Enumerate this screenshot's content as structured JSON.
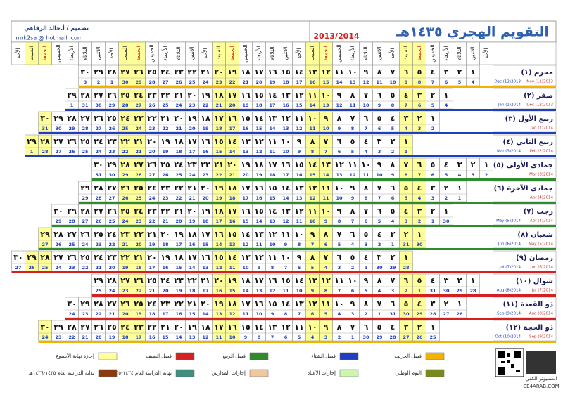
{
  "header": {
    "title": "التقويم الهجري ١٤٣٥هـ",
    "years": "2013/2014",
    "designer": "تصميم / أ.خالد الرفاعي",
    "email": "mrk2sa @ hotmail .com"
  },
  "weekdays": [
    "الأحد",
    "الاثنين",
    "الثلاثاء",
    "الأربعاء",
    "الخميس",
    "الجمعة",
    "السبت"
  ],
  "months": [
    {
      "name": "محرم (١)",
      "greg_months": [
        "Nov (11)2013",
        "Dec (12)2013"
      ],
      "season_color": "#f3b200",
      "days": [
        "١",
        "٢",
        "٣",
        "٤",
        "٥",
        "٦",
        "٧",
        "٨",
        "٩",
        "١٠",
        "١١",
        "١٢",
        "١٣",
        "١٤",
        "١٥",
        "١٦",
        "١٧",
        "١٨",
        "١٩",
        "٢٠",
        "٢١",
        "٢٢",
        "٢٣",
        "٢٤",
        "٢٥",
        "٢٦",
        "٢٧",
        "٢٨",
        "٢٩",
        "٣٠"
      ],
      "greg": [
        4,
        5,
        6,
        7,
        8,
        9,
        10,
        11,
        12,
        13,
        14,
        15,
        16,
        17,
        18,
        19,
        20,
        21,
        22,
        23,
        24,
        25,
        26,
        27,
        28,
        29,
        30,
        1,
        2,
        3
      ]
    },
    {
      "name": "صفر (٢)",
      "greg_months": [
        "Dec (12)2013",
        "Jan (1)2014"
      ],
      "season_color": "#1f3fbf",
      "days": [
        "١",
        "٢",
        "٣",
        "٤",
        "٥",
        "٦",
        "٧",
        "٨",
        "٩",
        "١٠",
        "١١",
        "١٢",
        "١٣",
        "١٤",
        "١٥",
        "١٦",
        "١٧",
        "١٨",
        "١٩",
        "٢٠",
        "٢١",
        "٢٢",
        "٢٣",
        "٢٤",
        "٢٥",
        "٢٦",
        "٢٧",
        "٢٨",
        "٢٩"
      ],
      "greg": [
        4,
        5,
        6,
        7,
        8,
        9,
        10,
        11,
        12,
        13,
        14,
        15,
        16,
        17,
        18,
        19,
        20,
        21,
        22,
        23,
        24,
        25,
        26,
        27,
        28,
        29,
        30,
        31,
        1
      ]
    },
    {
      "name": "ربيع الأول (٣)",
      "greg_months": [
        "Jan (1)2014"
      ],
      "season_color": "#1f3fbf",
      "days": [
        "١",
        "٢",
        "٣",
        "٤",
        "٥",
        "٦",
        "٧",
        "٨",
        "٩",
        "١٠",
        "١١",
        "١٢",
        "١٣",
        "١٤",
        "١٥",
        "١٦",
        "١٧",
        "١٨",
        "١٩",
        "٢٠",
        "٢١",
        "٢٢",
        "٢٣",
        "٢٤",
        "٢٥",
        "٢٦",
        "٢٧",
        "٢٨",
        "٢٩",
        "٣٠"
      ],
      "greg": [
        2,
        3,
        4,
        5,
        6,
        7,
        8,
        9,
        10,
        11,
        12,
        13,
        14,
        15,
        16,
        17,
        18,
        19,
        20,
        21,
        22,
        23,
        24,
        25,
        26,
        27,
        28,
        29,
        30,
        31
      ]
    },
    {
      "name": "ربيع الثاني (٤)",
      "greg_months": [
        "Feb (2)2014",
        "Mar (3)2014"
      ],
      "season_color": "#1f3fbf",
      "days": [
        "١",
        "٢",
        "٣",
        "٤",
        "٥",
        "٦",
        "٧",
        "٨",
        "٩",
        "١٠",
        "١١",
        "١٢",
        "١٣",
        "١٤",
        "١٥",
        "١٦",
        "١٧",
        "١٨",
        "١٩",
        "٢٠",
        "٢١",
        "٢٢",
        "٢٣",
        "٢٤",
        "٢٥",
        "٢٦",
        "٢٧",
        "٢٨",
        "٢٩"
      ],
      "greg": [
        1,
        2,
        3,
        4,
        5,
        6,
        7,
        8,
        9,
        10,
        11,
        12,
        13,
        14,
        15,
        16,
        17,
        18,
        19,
        20,
        21,
        22,
        23,
        24,
        25,
        26,
        27,
        28,
        1
      ]
    },
    {
      "name": "جمادى الأولى (٥)",
      "greg_months": [
        "Mar (3)2014"
      ],
      "season_color": "#2e8b2e",
      "days": [
        "١",
        "٢",
        "٣",
        "٤",
        "٥",
        "٦",
        "٧",
        "٨",
        "٩",
        "١٠",
        "١١",
        "١٢",
        "١٣",
        "١٤",
        "١٥",
        "١٦",
        "١٧",
        "١٨",
        "١٩",
        "٢٠",
        "٢١",
        "٢٢",
        "٢٣",
        "٢٤",
        "٢٥",
        "٢٦",
        "٢٧",
        "٢٨",
        "٢٩",
        "٣٠"
      ],
      "greg": [
        2,
        3,
        4,
        5,
        6,
        7,
        8,
        9,
        10,
        11,
        12,
        13,
        14,
        15,
        16,
        17,
        18,
        19,
        20,
        21,
        22,
        23,
        24,
        25,
        26,
        27,
        28,
        29,
        30,
        31
      ]
    },
    {
      "name": "جمادى الآخرة (٦)",
      "greg_months": [
        "Apr (4)2014"
      ],
      "season_color": "#2e8b2e",
      "days": [
        "١",
        "٢",
        "٣",
        "٤",
        "٥",
        "٦",
        "٧",
        "٨",
        "٩",
        "١٠",
        "١١",
        "١٢",
        "١٣",
        "١٤",
        "١٥",
        "١٦",
        "١٧",
        "١٨",
        "١٩",
        "٢٠",
        "٢١",
        "٢٢",
        "٢٣",
        "٢٤",
        "٢٥",
        "٢٦",
        "٢٧",
        "٢٨",
        "٢٩"
      ],
      "greg": [
        1,
        2,
        3,
        4,
        5,
        6,
        7,
        8,
        9,
        10,
        11,
        12,
        13,
        14,
        15,
        16,
        17,
        18,
        19,
        20,
        21,
        22,
        23,
        24,
        25,
        26,
        27,
        28,
        29
      ]
    },
    {
      "name": "رجب (٧)",
      "greg_months": [
        "Apr (4)2014",
        "May (5)2014"
      ],
      "season_color": "#2e8b2e",
      "days": [
        "١",
        "٢",
        "٣",
        "٤",
        "٥",
        "٦",
        "٧",
        "٨",
        "٩",
        "١٠",
        "١١",
        "١٢",
        "١٣",
        "١٤",
        "١٥",
        "١٦",
        "١٧",
        "١٨",
        "١٩",
        "٢٠",
        "٢١",
        "٢٢",
        "٢٣",
        "٢٤",
        "٢٥",
        "٢٦",
        "٢٧",
        "٢٨",
        "٢٩",
        "٣٠"
      ],
      "greg": [
        30,
        1,
        2,
        3,
        4,
        5,
        6,
        7,
        8,
        9,
        10,
        11,
        12,
        13,
        14,
        15,
        16,
        17,
        18,
        19,
        20,
        21,
        22,
        23,
        24,
        25,
        26,
        27,
        28,
        29
      ]
    },
    {
      "name": "شعبان (٨)",
      "greg_months": [
        "May (5)2014",
        "Jun (6)2014"
      ],
      "season_color": "#2e8b2e",
      "days": [
        "١",
        "٢",
        "٣",
        "٤",
        "٥",
        "٦",
        "٧",
        "٨",
        "٩",
        "١٠",
        "١١",
        "١٢",
        "١٣",
        "١٤",
        "١٥",
        "١٦",
        "١٧",
        "١٨",
        "١٩",
        "٢٠",
        "٢١",
        "٢٢",
        "٢٣",
        "٢٤",
        "٢٥",
        "٢٦",
        "٢٧",
        "٢٨",
        "٢٩"
      ],
      "greg": [
        30,
        31,
        1,
        2,
        3,
        4,
        5,
        6,
        7,
        8,
        9,
        10,
        11,
        12,
        13,
        14,
        15,
        16,
        17,
        18,
        19,
        20,
        21,
        22,
        23,
        24,
        25,
        26,
        27
      ]
    },
    {
      "name": "رمضان (٩)",
      "greg_months": [
        "Jun (6)2014",
        "Jul (7)2014"
      ],
      "season_color": "#d42020",
      "days": [
        "١",
        "٢",
        "٣",
        "٤",
        "٥",
        "٦",
        "٧",
        "٨",
        "٩",
        "١٠",
        "١١",
        "١٢",
        "١٣",
        "١٤",
        "١٥",
        "١٦",
        "١٧",
        "١٨",
        "١٩",
        "٢٠",
        "٢١",
        "٢٢",
        "٢٣",
        "٢٤",
        "٢٥",
        "٢٦",
        "٢٧",
        "٢٨",
        "٢٩",
        "٣٠"
      ],
      "greg": [
        28,
        29,
        30,
        1,
        2,
        3,
        4,
        5,
        6,
        7,
        8,
        9,
        10,
        11,
        12,
        13,
        14,
        15,
        16,
        17,
        18,
        19,
        20,
        21,
        22,
        23,
        24,
        25,
        26,
        27
      ]
    },
    {
      "name": "شوال (١٠)",
      "greg_months": [
        "Jul (7)2014",
        "Aug (8)2014"
      ],
      "season_color": "#d42020",
      "days": [
        "١",
        "٢",
        "٣",
        "٤",
        "٥",
        "٦",
        "٧",
        "٨",
        "٩",
        "١٠",
        "١١",
        "١٢",
        "١٣",
        "١٤",
        "١٥",
        "١٦",
        "١٧",
        "١٨",
        "١٩",
        "٢٠",
        "٢١",
        "٢٢",
        "٢٣",
        "٢٤",
        "٢٥",
        "٢٦",
        "٢٧",
        "٢٨",
        "٢٩"
      ],
      "greg": [
        28,
        29,
        30,
        31,
        1,
        2,
        3,
        4,
        5,
        6,
        7,
        8,
        9,
        10,
        11,
        12,
        13,
        14,
        15,
        16,
        17,
        18,
        19,
        20,
        21,
        22,
        23,
        24,
        25
      ]
    },
    {
      "name": "ذو القعدة (١١)",
      "greg_months": [
        "Aug (8)2014",
        "Sep (9)2014"
      ],
      "season_color": "#d42020",
      "days": [
        "١",
        "٢",
        "٣",
        "٤",
        "٥",
        "٦",
        "٧",
        "٨",
        "٩",
        "١٠",
        "١١",
        "١٢",
        "١٣",
        "١٤",
        "١٥",
        "١٦",
        "١٧",
        "١٨",
        "١٩",
        "٢٠",
        "٢١",
        "٢٢",
        "٢٣",
        "٢٤",
        "٢٥",
        "٢٦",
        "٢٧",
        "٢٨",
        "٢٩",
        "٣٠"
      ],
      "greg": [
        26,
        27,
        28,
        29,
        30,
        31,
        1,
        2,
        3,
        4,
        5,
        6,
        7,
        8,
        9,
        10,
        11,
        12,
        13,
        14,
        15,
        16,
        17,
        18,
        19,
        20,
        21,
        22,
        23,
        24
      ]
    },
    {
      "name": "ذو الحجة (١٢)",
      "greg_months": [
        "Sep (9)2014",
        "Oct (10)2014"
      ],
      "season_color": "#f3b200",
      "days": [
        "١",
        "٢",
        "٣",
        "٤",
        "٥",
        "٦",
        "٧",
        "٨",
        "٩",
        "١٠",
        "١١",
        "١٢",
        "١٣",
        "١٤",
        "١٥",
        "١٦",
        "١٧",
        "١٨",
        "١٩",
        "٢٠",
        "٢١",
        "٢٢",
        "٢٣",
        "٢٤",
        "٢٥",
        "٢٦",
        "٢٧",
        "٢٨",
        "٢٩",
        "٣٠"
      ],
      "greg": [
        25,
        26,
        27,
        28,
        29,
        30,
        1,
        2,
        3,
        4,
        5,
        6,
        7,
        8,
        9,
        10,
        11,
        12,
        13,
        14,
        15,
        16,
        17,
        18,
        19,
        20,
        21,
        22,
        23,
        24
      ]
    }
  ],
  "legend": [
    {
      "label": "فصل الخريف",
      "color": "#f3b200"
    },
    {
      "label": "فصل الشتاء",
      "color": "#1f3fbf"
    },
    {
      "label": "فصل الربيع",
      "color": "#2e8b2e"
    },
    {
      "label": "فصل الصيف",
      "color": "#d42020"
    },
    {
      "label": "إجازة نهاية الأسبوع",
      "color": "#ffff99"
    },
    {
      "label": "اليوم الوطني",
      "color": "#7a8a1a"
    },
    {
      "label": "إجازات الأعياد",
      "color": "#ccf5b0"
    },
    {
      "label": "إجازات المدارس",
      "color": "#f0c8a0"
    },
    {
      "label": "نهاية الدراسة لعام ١٤٣٤-١٤٣٥هـ",
      "color": "#3f8f80"
    },
    {
      "label": "بداية الدراسة لعام ١٤٣٥-١٤٣٦هـ",
      "color": "#8b3a10"
    }
  ],
  "footer": {
    "brand": "الكمبيوتر الكفي",
    "site": "CE4ARAB.COM"
  }
}
